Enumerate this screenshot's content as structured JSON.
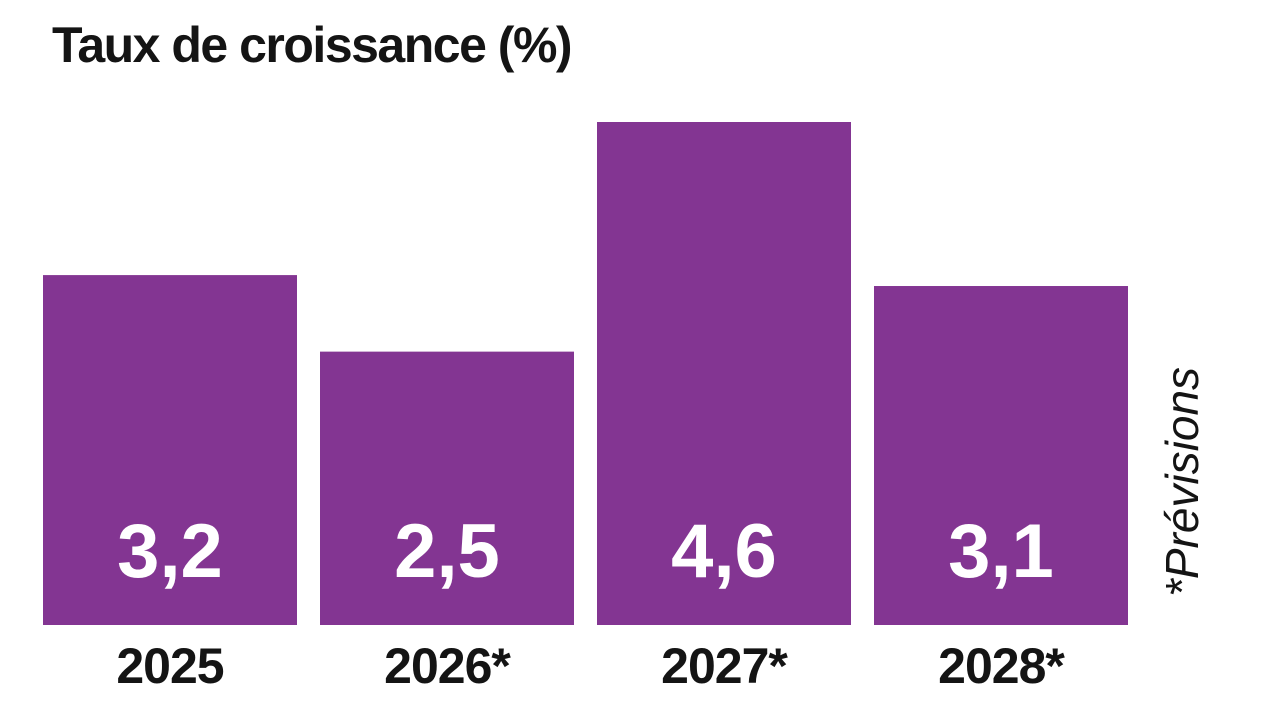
{
  "chart_data": {
    "type": "bar",
    "title": "Taux de croissance (%)",
    "categories": [
      "2025",
      "2026*",
      "2027*",
      "2028*"
    ],
    "values": [
      3.2,
      2.5,
      4.6,
      3.1
    ],
    "value_labels": [
      "3,2",
      "2,5",
      "4,6",
      "3,1"
    ],
    "xlabel": "",
    "ylabel": "",
    "ylim": [
      0,
      4.6
    ],
    "grid": false,
    "footnote": "*Prévisions",
    "bar_color": "#833592",
    "value_label_color": "#ffffff",
    "label_color": "#141414"
  }
}
